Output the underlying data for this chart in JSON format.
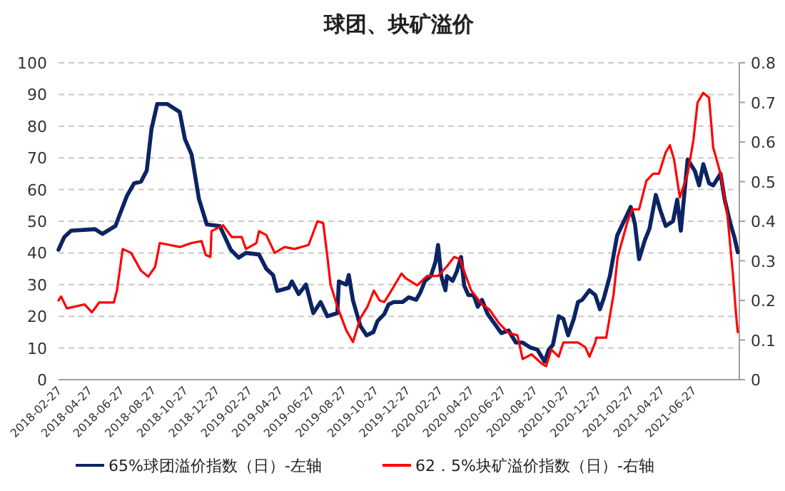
{
  "chart_data": {
    "type": "line",
    "title": "球团、块矿溢价",
    "xlim": [
      "2018-02-20",
      "2021-09-16"
    ],
    "xticks": [
      "2018-02-27",
      "2018-04-27",
      "2018-06-27",
      "2018-08-27",
      "2018-10-27",
      "2018-12-27",
      "2019-02-27",
      "2019-04-27",
      "2019-06-27",
      "2019-08-27",
      "2019-10-27",
      "2019-12-27",
      "2020-02-27",
      "2020-04-27",
      "2020-06-27",
      "2020-08-27",
      "2020-10-27",
      "2020-12-27",
      "2021-02-27",
      "2021-04-27",
      "2021-06-27"
    ],
    "ylim": [
      0,
      100
    ],
    "yticks": [
      0,
      10,
      20,
      30,
      40,
      50,
      60,
      70,
      80,
      90,
      100
    ],
    "y2lim": [
      0,
      0.8
    ],
    "y2ticks": [
      0,
      0.1,
      0.2,
      0.3,
      0.4,
      0.5,
      0.6,
      0.7,
      0.8
    ],
    "grid": "y",
    "legend": "bottom",
    "line_style": "solid",
    "marker": "none",
    "series": [
      {
        "name": "65%球团溢价指数（日）-左轴",
        "color": "#0b2463",
        "axis": "y",
        "x": [
          "2018-02-20",
          "2018-03-03",
          "2018-03-16",
          "2018-05-01",
          "2018-05-15",
          "2018-06-09",
          "2018-06-17",
          "2018-07-01",
          "2018-07-15",
          "2018-07-28",
          "2018-08-08",
          "2018-08-17",
          "2018-08-28",
          "2018-09-16",
          "2018-10-10",
          "2018-10-20",
          "2018-11-02",
          "2018-11-16",
          "2018-12-01",
          "2018-12-26",
          "2019-01-16",
          "2019-01-31",
          "2019-02-14",
          "2019-03-11",
          "2019-03-25",
          "2019-04-07",
          "2019-04-15",
          "2019-05-07",
          "2019-05-13",
          "2019-05-26",
          "2019-06-09",
          "2019-06-23",
          "2019-07-07",
          "2019-07-20",
          "2019-08-08",
          "2019-08-11",
          "2019-08-25",
          "2019-08-30",
          "2019-09-07",
          "2019-09-21",
          "2019-10-03",
          "2019-10-16",
          "2019-10-24",
          "2019-11-06",
          "2019-11-14",
          "2019-11-24",
          "2019-12-11",
          "2019-12-23",
          "2020-01-06",
          "2020-01-14",
          "2020-01-23",
          "2020-02-03",
          "2020-02-12",
          "2020-02-17",
          "2020-02-23",
          "2020-03-02",
          "2020-03-05",
          "2020-03-16",
          "2020-03-24",
          "2020-04-01",
          "2020-04-07",
          "2020-04-15",
          "2020-04-25",
          "2020-05-03",
          "2020-05-11",
          "2020-05-22",
          "2020-06-04",
          "2020-06-17",
          "2020-07-01",
          "2020-07-15",
          "2020-07-28",
          "2020-08-11",
          "2020-08-25",
          "2020-09-08",
          "2020-09-16",
          "2020-09-24",
          "2020-10-05",
          "2020-10-14",
          "2020-10-23",
          "2020-11-03",
          "2020-11-11",
          "2020-11-19",
          "2020-12-03",
          "2020-12-14",
          "2020-12-23",
          "2020-12-31",
          "2021-01-11",
          "2021-01-25",
          "2021-02-07",
          "2021-02-20",
          "2021-02-28",
          "2021-03-08",
          "2021-03-19",
          "2021-03-28",
          "2021-04-09",
          "2021-04-17",
          "2021-04-28",
          "2021-05-12",
          "2021-05-20",
          "2021-05-27",
          "2021-06-09",
          "2021-06-23",
          "2021-07-01",
          "2021-07-09",
          "2021-07-20",
          "2021-07-28",
          "2021-08-11",
          "2021-08-19",
          "2021-08-30",
          "2021-09-07",
          "2021-09-13"
        ],
        "values": [
          41,
          45,
          47,
          47.5,
          46,
          48.5,
          52,
          58,
          62,
          62.5,
          66,
          79,
          87,
          87,
          84.5,
          76,
          71,
          57,
          49,
          48.5,
          41,
          38.5,
          40,
          39.5,
          35,
          33,
          28,
          29,
          31,
          27,
          30,
          21,
          24.5,
          20,
          21,
          31,
          30,
          33,
          25,
          17,
          14,
          15,
          18.5,
          20.7,
          23.7,
          24.5,
          24.5,
          26,
          25.2,
          27.5,
          31.2,
          32.7,
          37.2,
          42.5,
          32.7,
          28.2,
          32.7,
          31.2,
          34.2,
          38.7,
          29.7,
          26.7,
          26.7,
          23,
          25.2,
          20.7,
          17.7,
          14.7,
          15.5,
          11.7,
          11.7,
          10.2,
          9.5,
          5.7,
          9.5,
          11,
          20,
          19.2,
          14,
          19.2,
          24.5,
          25.2,
          28.2,
          26.7,
          22.2,
          26,
          32.7,
          45.5,
          50,
          54.5,
          49.2,
          38,
          44,
          47.7,
          58.3,
          53.8,
          48.5,
          50,
          56.8,
          47,
          69.5,
          65.8,
          61.3,
          68,
          62,
          61.3,
          65,
          56.8,
          49.2,
          44.7,
          40.2
        ]
      },
      {
        "name": "62．5%块矿溢价指数（日）-右轴",
        "color": "#ff0000",
        "axis": "y2",
        "x": [
          "2018-02-20",
          "2018-02-25",
          "2018-03-08",
          "2018-04-11",
          "2018-04-25",
          "2018-05-09",
          "2018-06-06",
          "2018-06-12",
          "2018-06-23",
          "2018-07-09",
          "2018-07-28",
          "2018-08-11",
          "2018-08-24",
          "2018-09-02",
          "2018-09-21",
          "2018-10-11",
          "2018-11-02",
          "2018-11-21",
          "2018-11-29",
          "2018-12-08",
          "2018-12-10",
          "2019-01-01",
          "2019-01-18",
          "2019-02-06",
          "2019-02-14",
          "2019-03-06",
          "2019-03-11",
          "2019-03-25",
          "2019-04-10",
          "2019-04-29",
          "2019-05-18",
          "2019-06-14",
          "2019-07-01",
          "2019-07-12",
          "2019-07-20",
          "2019-07-26",
          "2019-08-08",
          "2019-08-25",
          "2019-09-07",
          "2019-09-21",
          "2019-10-05",
          "2019-10-17",
          "2019-10-28",
          "2019-11-06",
          "2019-11-20",
          "2019-12-09",
          "2019-12-17",
          "2020-01-08",
          "2020-01-27",
          "2020-02-17",
          "2020-03-05",
          "2020-03-19",
          "2020-03-30",
          "2020-04-07",
          "2020-04-20",
          "2020-05-11",
          "2020-05-25",
          "2020-06-13",
          "2020-07-01",
          "2020-07-18",
          "2020-07-28",
          "2020-08-14",
          "2020-09-03",
          "2020-09-11",
          "2020-09-21",
          "2020-10-05",
          "2020-10-14",
          "2020-11-11",
          "2020-11-25",
          "2020-12-03",
          "2020-12-14",
          "2020-12-16",
          "2021-01-04",
          "2021-01-18",
          "2021-01-26",
          "2021-02-14",
          "2021-02-23",
          "2021-03-08",
          "2021-03-22",
          "2021-04-04",
          "2021-04-15",
          "2021-04-28",
          "2021-05-06",
          "2021-05-14",
          "2021-05-25",
          "2021-06-09",
          "2021-06-20",
          "2021-06-28",
          "2021-07-09",
          "2021-07-20",
          "2021-07-28",
          "2021-08-11",
          "2021-08-24",
          "2021-09-04",
          "2021-09-10",
          "2021-09-13"
        ],
        "values": [
          0.2,
          0.21,
          0.18,
          0.19,
          0.17,
          0.195,
          0.195,
          0.226,
          0.33,
          0.32,
          0.275,
          0.26,
          0.285,
          0.345,
          0.34,
          0.335,
          0.345,
          0.35,
          0.315,
          0.31,
          0.375,
          0.39,
          0.36,
          0.36,
          0.33,
          0.345,
          0.375,
          0.365,
          0.32,
          0.335,
          0.33,
          0.34,
          0.4,
          0.395,
          0.31,
          0.24,
          0.185,
          0.125,
          0.095,
          0.155,
          0.185,
          0.225,
          0.2,
          0.196,
          0.226,
          0.268,
          0.256,
          0.238,
          0.262,
          0.262,
          0.286,
          0.31,
          0.304,
          0.274,
          0.226,
          0.19,
          0.178,
          0.142,
          0.118,
          0.112,
          0.052,
          0.064,
          0.04,
          0.034,
          0.076,
          0.058,
          0.094,
          0.094,
          0.082,
          0.058,
          0.094,
          0.106,
          0.106,
          0.214,
          0.31,
          0.4,
          0.43,
          0.43,
          0.502,
          0.52,
          0.52,
          0.574,
          0.592,
          0.556,
          0.46,
          0.52,
          0.604,
          0.7,
          0.724,
          0.712,
          0.586,
          0.52,
          0.418,
          0.262,
          0.16,
          0.12
        ]
      }
    ]
  }
}
